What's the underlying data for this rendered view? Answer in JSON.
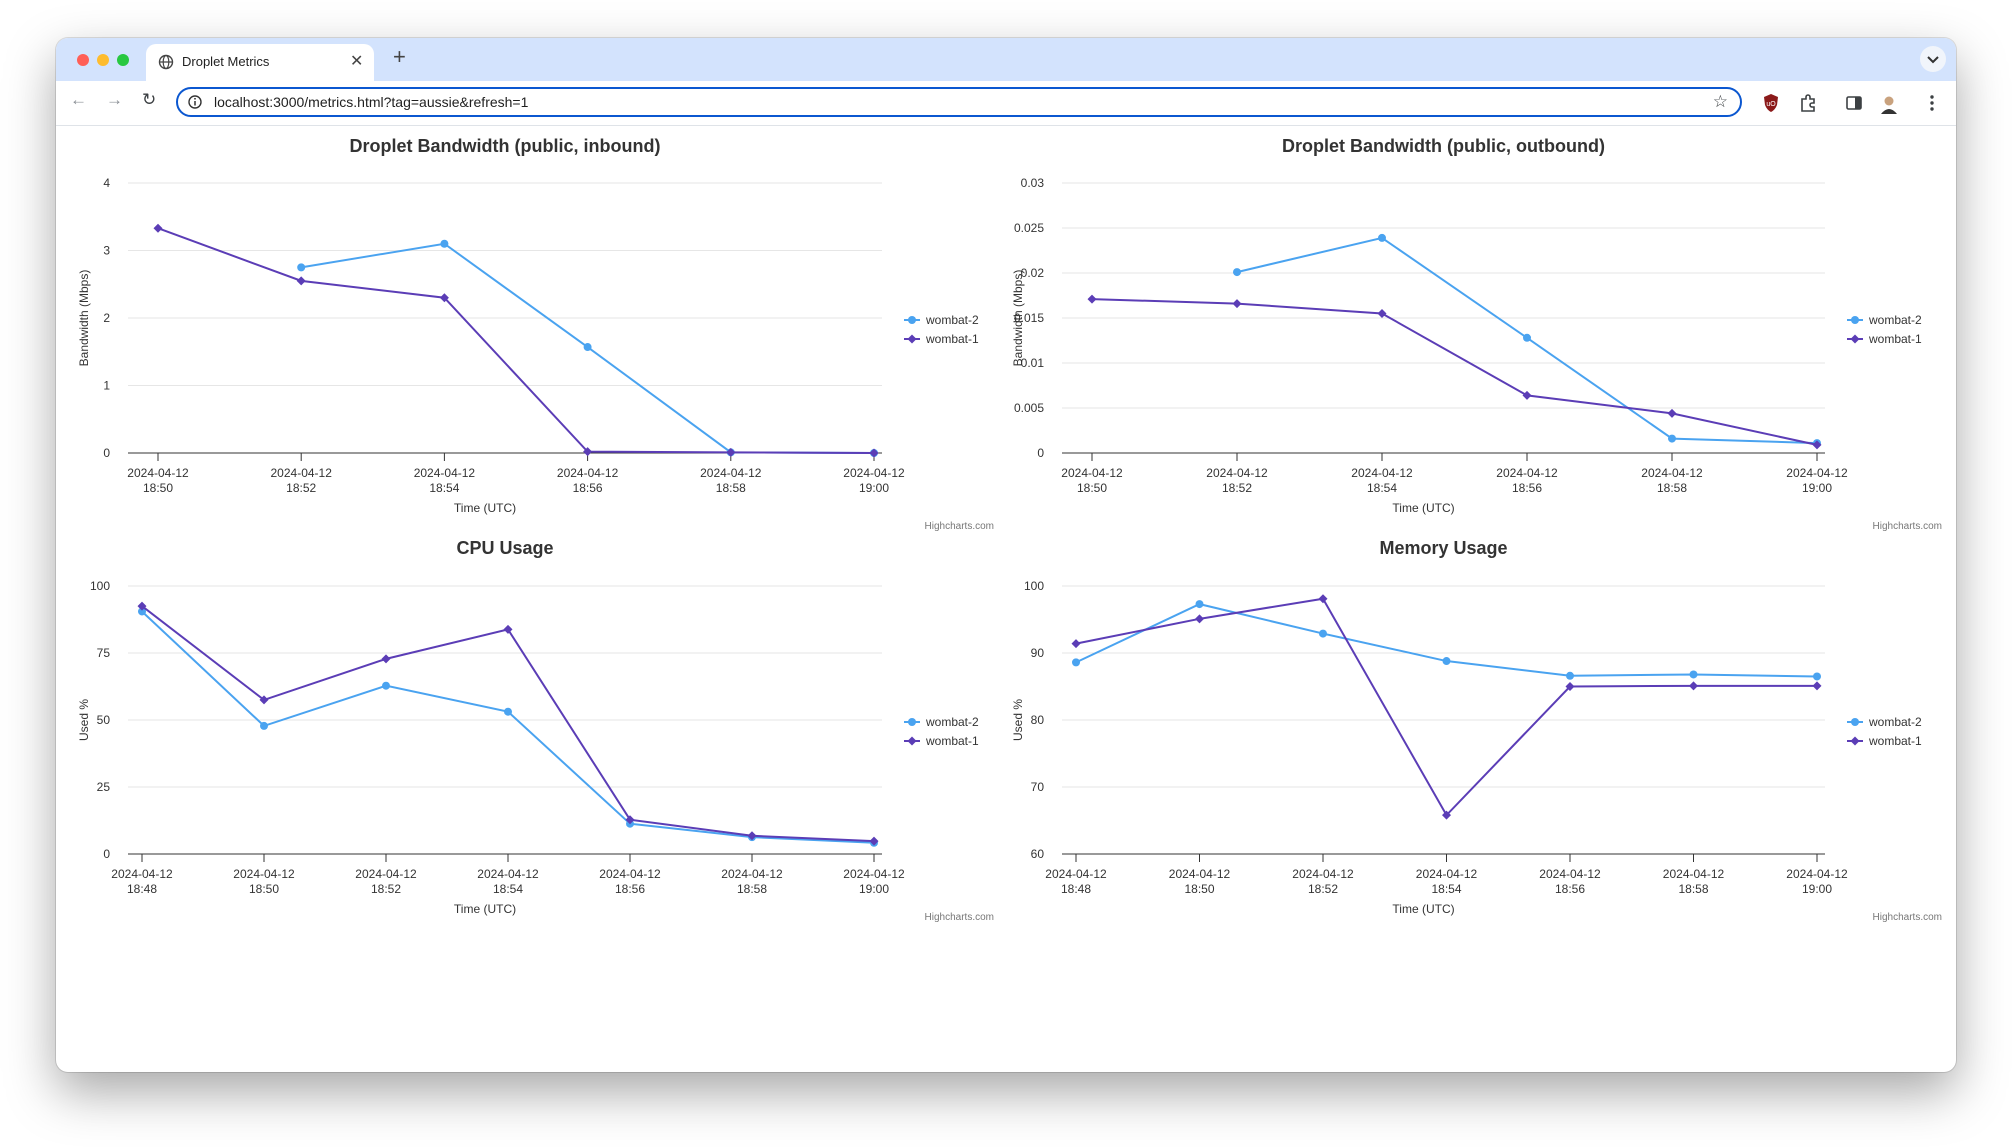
{
  "browser": {
    "tab_title": "Droplet Metrics",
    "url": "localhost:3000/metrics.html?tag=aussie&refresh=1",
    "icons": [
      "globe-icon",
      "close-icon",
      "plus-icon",
      "chevron-down-icon",
      "back-arrow-icon",
      "forward-arrow-icon",
      "reload-icon",
      "info-icon",
      "star-icon",
      "shield-extension-icon",
      "puzzle-icon",
      "sidebar-icon",
      "avatar-icon",
      "kebab-menu-icon"
    ]
  },
  "credits": "Highcharts.com",
  "colors": {
    "wombat-2": "#4aa3f0",
    "wombat-1": "#5b3db6"
  },
  "chart_data": [
    {
      "type": "line",
      "title": "Droplet Bandwidth (public, inbound)",
      "xlabel": "Time (UTC)",
      "ylabel": "Bandwidth (Mbps)",
      "x": [
        "2024-04-12 18:50",
        "2024-04-12 18:52",
        "2024-04-12 18:54",
        "2024-04-12 18:56",
        "2024-04-12 18:58",
        "2024-04-12 19:00"
      ],
      "ylim": [
        0,
        4
      ],
      "yticks": [
        "0",
        "1",
        "2",
        "3",
        "4"
      ],
      "legend": "right",
      "series": [
        {
          "name": "wombat-2",
          "values": [
            null,
            2.75,
            3.1,
            1.57,
            0.01,
            0.0
          ]
        },
        {
          "name": "wombat-1",
          "values": [
            3.33,
            2.55,
            2.3,
            0.02,
            0.01,
            0.0
          ]
        }
      ]
    },
    {
      "type": "line",
      "title": "Droplet Bandwidth (public, outbound)",
      "xlabel": "Time (UTC)",
      "ylabel": "Bandwidth (Mbps)",
      "x": [
        "2024-04-12 18:50",
        "2024-04-12 18:52",
        "2024-04-12 18:54",
        "2024-04-12 18:56",
        "2024-04-12 18:58",
        "2024-04-12 19:00"
      ],
      "ylim": [
        0,
        0.03
      ],
      "yticks": [
        "0",
        "0.005",
        "0.01",
        "0.015",
        "0.02",
        "0.025",
        "0.03"
      ],
      "legend": "right",
      "series": [
        {
          "name": "wombat-2",
          "values": [
            null,
            0.0201,
            0.0239,
            0.0128,
            0.0016,
            0.0011
          ]
        },
        {
          "name": "wombat-1",
          "values": [
            0.0171,
            0.0166,
            0.0155,
            0.0064,
            0.0044,
            0.0009
          ]
        }
      ]
    },
    {
      "type": "line",
      "title": "CPU Usage",
      "xlabel": "Time (UTC)",
      "ylabel": "Used %",
      "x": [
        "2024-04-12 18:48",
        "2024-04-12 18:50",
        "2024-04-12 18:52",
        "2024-04-12 18:54",
        "2024-04-12 18:56",
        "2024-04-12 18:58",
        "2024-04-12 19:00"
      ],
      "ylim": [
        0,
        100
      ],
      "yticks": [
        "0",
        "25",
        "50",
        "75",
        "100"
      ],
      "legend": "right",
      "series": [
        {
          "name": "wombat-2",
          "values": [
            90.5,
            47.8,
            62.8,
            53.1,
            11.3,
            6.3,
            4.2
          ]
        },
        {
          "name": "wombat-1",
          "values": [
            92.5,
            57.5,
            72.8,
            83.8,
            12.8,
            6.8,
            4.8
          ]
        }
      ]
    },
    {
      "type": "line",
      "title": "Memory Usage",
      "xlabel": "Time (UTC)",
      "ylabel": "Used %",
      "x": [
        "2024-04-12 18:48",
        "2024-04-12 18:50",
        "2024-04-12 18:52",
        "2024-04-12 18:54",
        "2024-04-12 18:56",
        "2024-04-12 18:58",
        "2024-04-12 19:00"
      ],
      "ylim": [
        60,
        100
      ],
      "yticks": [
        "60",
        "70",
        "80",
        "90",
        "100"
      ],
      "legend": "right",
      "series": [
        {
          "name": "wombat-2",
          "values": [
            88.6,
            97.3,
            92.9,
            88.8,
            86.6,
            86.8,
            86.5
          ]
        },
        {
          "name": "wombat-1",
          "values": [
            91.4,
            95.1,
            98.1,
            65.8,
            85.0,
            85.1,
            85.1
          ]
        }
      ]
    }
  ]
}
